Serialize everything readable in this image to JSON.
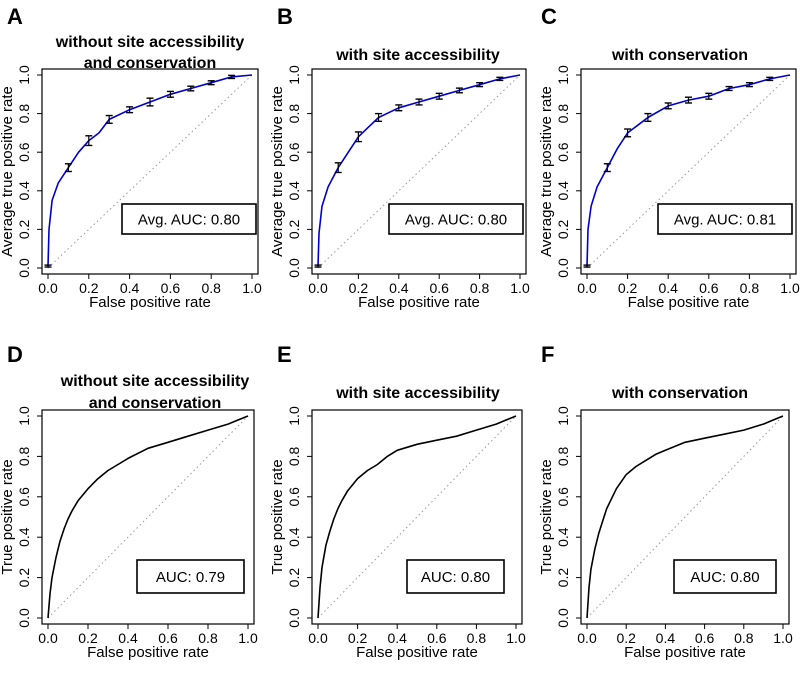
{
  "colors": {
    "curve_avg": "#0000cc",
    "curve_single": "#000000",
    "error_bar": "#000000",
    "diagonal": "#999999",
    "box_border": "#000000",
    "text": "#000000"
  },
  "chart_data": [
    {
      "panel": "A",
      "type": "line",
      "title_lines": [
        "without site accessibility",
        "and conservation"
      ],
      "xlabel": "False positive rate",
      "ylabel": "Average true positive rate",
      "xlim": [
        0,
        1
      ],
      "ylim": [
        0,
        1
      ],
      "xticks": [
        "0.0",
        "0.2",
        "0.4",
        "0.6",
        "0.8",
        "1.0"
      ],
      "yticks": [
        "0.0",
        "0.2",
        "0.4",
        "0.6",
        "0.8",
        "1.0"
      ],
      "auc_label": "Avg. AUC: 0.80",
      "curve_color": "blue",
      "x": [
        0,
        0.005,
        0.02,
        0.05,
        0.1,
        0.15,
        0.2,
        0.25,
        0.3,
        0.4,
        0.5,
        0.6,
        0.7,
        0.8,
        0.9,
        1.0
      ],
      "y": [
        0.01,
        0.2,
        0.35,
        0.44,
        0.52,
        0.6,
        0.66,
        0.7,
        0.77,
        0.82,
        0.86,
        0.9,
        0.93,
        0.96,
        0.99,
        1.0
      ],
      "error_bars": {
        "x": [
          0,
          0.1,
          0.2,
          0.3,
          0.4,
          0.5,
          0.6,
          0.7,
          0.8,
          0.9
        ],
        "y": [
          0.01,
          0.52,
          0.66,
          0.77,
          0.82,
          0.86,
          0.9,
          0.93,
          0.96,
          0.99
        ],
        "err": [
          0.005,
          0.02,
          0.025,
          0.02,
          0.015,
          0.02,
          0.015,
          0.012,
          0.01,
          0.008
        ]
      }
    },
    {
      "panel": "B",
      "type": "line",
      "title_lines": [
        "with site accessibility"
      ],
      "xlabel": "False positive rate",
      "ylabel": "Average true positive rate",
      "xlim": [
        0,
        1
      ],
      "ylim": [
        0,
        1
      ],
      "xticks": [
        "0.0",
        "0.2",
        "0.4",
        "0.6",
        "0.8",
        "1.0"
      ],
      "yticks": [
        "0.0",
        "0.2",
        "0.4",
        "0.6",
        "0.8",
        "1.0"
      ],
      "auc_label": "Avg. AUC: 0.80",
      "curve_color": "blue",
      "x": [
        0,
        0.005,
        0.02,
        0.05,
        0.1,
        0.15,
        0.2,
        0.25,
        0.3,
        0.4,
        0.5,
        0.6,
        0.7,
        0.8,
        0.9,
        1.0
      ],
      "y": [
        0.01,
        0.18,
        0.32,
        0.42,
        0.52,
        0.6,
        0.68,
        0.73,
        0.78,
        0.83,
        0.86,
        0.89,
        0.92,
        0.95,
        0.98,
        1.0
      ],
      "error_bars": {
        "x": [
          0,
          0.1,
          0.2,
          0.3,
          0.4,
          0.5,
          0.6,
          0.7,
          0.8,
          0.9
        ],
        "y": [
          0.01,
          0.52,
          0.68,
          0.78,
          0.83,
          0.86,
          0.89,
          0.92,
          0.95,
          0.98
        ],
        "err": [
          0.005,
          0.025,
          0.025,
          0.02,
          0.015,
          0.015,
          0.015,
          0.012,
          0.01,
          0.008
        ]
      }
    },
    {
      "panel": "C",
      "type": "line",
      "title_lines": [
        "with conservation"
      ],
      "xlabel": "False positive rate",
      "ylabel": "Average true positive rate",
      "xlim": [
        0,
        1
      ],
      "ylim": [
        0,
        1
      ],
      "xticks": [
        "0.0",
        "0.2",
        "0.4",
        "0.6",
        "0.8",
        "1.0"
      ],
      "yticks": [
        "0.0",
        "0.2",
        "0.4",
        "0.6",
        "0.8",
        "1.0"
      ],
      "auc_label": "Avg. AUC: 0.81",
      "curve_color": "blue",
      "x": [
        0,
        0.005,
        0.02,
        0.05,
        0.1,
        0.15,
        0.2,
        0.25,
        0.3,
        0.4,
        0.5,
        0.6,
        0.7,
        0.8,
        0.9,
        1.0
      ],
      "y": [
        0.01,
        0.2,
        0.32,
        0.42,
        0.52,
        0.62,
        0.7,
        0.74,
        0.78,
        0.84,
        0.87,
        0.89,
        0.93,
        0.95,
        0.98,
        1.0
      ],
      "error_bars": {
        "x": [
          0,
          0.1,
          0.2,
          0.3,
          0.4,
          0.5,
          0.6,
          0.7,
          0.8,
          0.9
        ],
        "y": [
          0.01,
          0.52,
          0.7,
          0.78,
          0.84,
          0.87,
          0.89,
          0.93,
          0.95,
          0.98
        ],
        "err": [
          0.005,
          0.02,
          0.02,
          0.02,
          0.015,
          0.015,
          0.015,
          0.01,
          0.01,
          0.008
        ]
      }
    },
    {
      "panel": "D",
      "type": "line",
      "title_lines": [
        "without site accessibility",
        "and conservation"
      ],
      "xlabel": "False positive rate",
      "ylabel": "True positive rate",
      "xlim": [
        0,
        1
      ],
      "ylim": [
        0,
        1
      ],
      "xticks": [
        "0.0",
        "0.2",
        "0.4",
        "0.6",
        "0.8",
        "1.0"
      ],
      "yticks": [
        "0.0",
        "0.2",
        "0.4",
        "0.6",
        "0.8",
        "1.0"
      ],
      "auc_label": "AUC: 0.79",
      "curve_color": "black",
      "x": [
        0,
        0.01,
        0.02,
        0.04,
        0.06,
        0.08,
        0.1,
        0.12,
        0.15,
        0.2,
        0.25,
        0.3,
        0.35,
        0.4,
        0.5,
        0.6,
        0.7,
        0.8,
        0.9,
        0.95,
        1.0
      ],
      "y": [
        0,
        0.12,
        0.2,
        0.3,
        0.38,
        0.44,
        0.49,
        0.53,
        0.58,
        0.64,
        0.69,
        0.73,
        0.76,
        0.79,
        0.84,
        0.87,
        0.9,
        0.93,
        0.96,
        0.98,
        1.0
      ]
    },
    {
      "panel": "E",
      "type": "line",
      "title_lines": [
        "with site accessibility"
      ],
      "xlabel": "False positive rate",
      "ylabel": "True positive rate",
      "xlim": [
        0,
        1
      ],
      "ylim": [
        0,
        1
      ],
      "xticks": [
        "0.0",
        "0.2",
        "0.4",
        "0.6",
        "0.8",
        "1.0"
      ],
      "yticks": [
        "0.0",
        "0.2",
        "0.4",
        "0.6",
        "0.8",
        "1.0"
      ],
      "auc_label": "AUC: 0.80",
      "curve_color": "black",
      "x": [
        0,
        0.01,
        0.02,
        0.04,
        0.06,
        0.08,
        0.1,
        0.12,
        0.15,
        0.2,
        0.25,
        0.3,
        0.35,
        0.4,
        0.5,
        0.6,
        0.7,
        0.8,
        0.9,
        0.95,
        1.0
      ],
      "y": [
        0,
        0.15,
        0.25,
        0.36,
        0.43,
        0.49,
        0.54,
        0.58,
        0.63,
        0.69,
        0.73,
        0.76,
        0.8,
        0.83,
        0.86,
        0.88,
        0.9,
        0.93,
        0.96,
        0.98,
        1.0
      ]
    },
    {
      "panel": "F",
      "type": "line",
      "title_lines": [
        "with conservation"
      ],
      "xlabel": "False positive rate",
      "ylabel": "True positive rate",
      "xlim": [
        0,
        1
      ],
      "ylim": [
        0,
        1
      ],
      "xticks": [
        "0.0",
        "0.2",
        "0.4",
        "0.6",
        "0.8",
        "1.0"
      ],
      "yticks": [
        "0.0",
        "0.2",
        "0.4",
        "0.6",
        "0.8",
        "1.0"
      ],
      "auc_label": "AUC: 0.80",
      "curve_color": "black",
      "x": [
        0,
        0.01,
        0.02,
        0.04,
        0.06,
        0.08,
        0.1,
        0.12,
        0.15,
        0.2,
        0.25,
        0.3,
        0.35,
        0.4,
        0.5,
        0.6,
        0.7,
        0.8,
        0.9,
        0.95,
        1.0
      ],
      "y": [
        0,
        0.15,
        0.24,
        0.34,
        0.42,
        0.48,
        0.54,
        0.58,
        0.64,
        0.71,
        0.75,
        0.78,
        0.81,
        0.83,
        0.87,
        0.89,
        0.91,
        0.93,
        0.96,
        0.98,
        1.0
      ]
    }
  ]
}
